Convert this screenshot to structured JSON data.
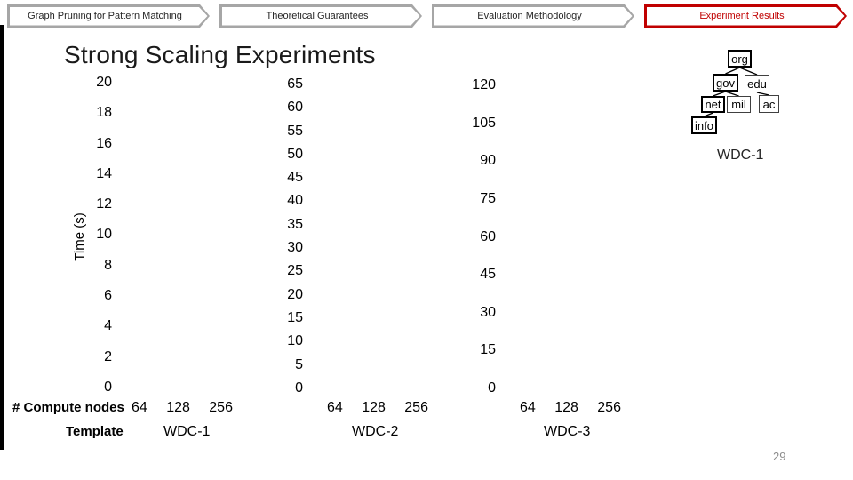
{
  "nav": {
    "tabs": [
      {
        "label": "Graph Pruning for Pattern Matching",
        "active": false
      },
      {
        "label": "Theoretical Guarantees",
        "active": false
      },
      {
        "label": "Evaluation Methodology",
        "active": false
      },
      {
        "label": "Experiment Results",
        "active": true
      }
    ],
    "inactive_border_color": "#a6a6a6",
    "active_border_color": "#c00000"
  },
  "title": "Strong Scaling Experiments",
  "axis_captions": {
    "x": "# Compute nodes",
    "group": "Template"
  },
  "chart_data": [
    {
      "type": "bar",
      "title": "WDC-1",
      "ylabel": "Time (s)",
      "categories": [
        "64",
        "128",
        "256"
      ],
      "values": [],
      "ylim": [
        0,
        20
      ],
      "ytick_step": 2,
      "yticks": [
        20,
        18,
        16,
        14,
        12,
        10,
        8,
        6,
        4,
        2,
        0
      ],
      "note": "plot area empty - no bars rendered in screenshot"
    },
    {
      "type": "bar",
      "title": "WDC-2",
      "ylabel": "",
      "categories": [
        "64",
        "128",
        "256"
      ],
      "values": [],
      "ylim": [
        0,
        65
      ],
      "ytick_step": 5,
      "yticks": [
        65,
        60,
        55,
        50,
        45,
        40,
        35,
        30,
        25,
        20,
        15,
        10,
        5,
        0
      ],
      "note": "plot area empty - no bars rendered in screenshot"
    },
    {
      "type": "bar",
      "title": "WDC-3",
      "ylabel": "",
      "categories": [
        "64",
        "128",
        "256"
      ],
      "values": [],
      "ylim": [
        0,
        120
      ],
      "ytick_step": 15,
      "yticks": [
        120,
        105,
        90,
        75,
        60,
        45,
        30,
        15,
        0
      ],
      "note": "plot area empty - no bars rendered in screenshot"
    }
  ],
  "tree": {
    "caption": "WDC-1",
    "nodes": [
      {
        "id": "org",
        "label": "org",
        "bold": true
      },
      {
        "id": "gov",
        "label": "gov",
        "bold": true
      },
      {
        "id": "edu",
        "label": "edu",
        "bold": false
      },
      {
        "id": "net",
        "label": "net",
        "bold": true
      },
      {
        "id": "mil",
        "label": "mil",
        "bold": false
      },
      {
        "id": "ac",
        "label": "ac",
        "bold": false
      },
      {
        "id": "info",
        "label": "info",
        "bold": true
      }
    ],
    "edges": [
      [
        "org",
        "gov"
      ],
      [
        "org",
        "edu"
      ],
      [
        "gov",
        "net"
      ],
      [
        "gov",
        "mil"
      ],
      [
        "edu",
        "ac"
      ],
      [
        "net",
        "info"
      ]
    ]
  },
  "page_number": "29"
}
